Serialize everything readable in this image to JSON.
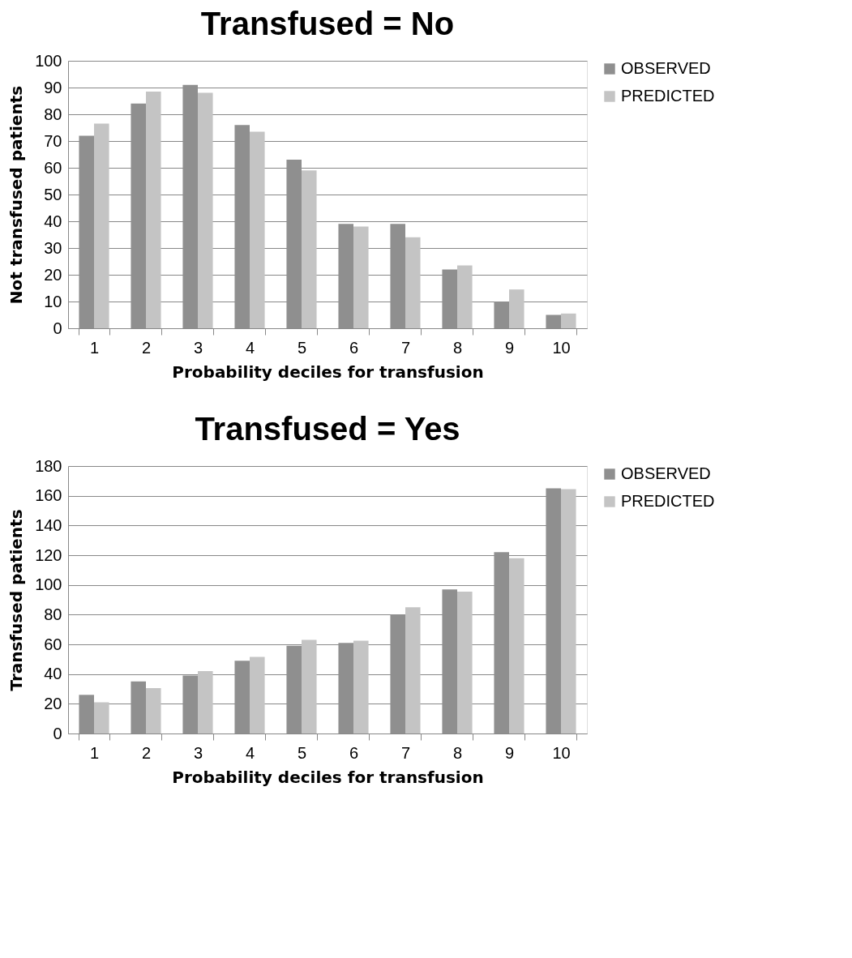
{
  "chart_data": [
    {
      "type": "bar",
      "title": "Transfused = No",
      "xlabel": "Probability deciles for transfusion",
      "ylabel": "Not transfused patients",
      "categories": [
        "1",
        "2",
        "3",
        "4",
        "5",
        "6",
        "7",
        "8",
        "9",
        "10"
      ],
      "series": [
        {
          "name": "OBSERVED",
          "color": "#8f8f8f",
          "values": [
            72,
            84,
            91,
            76,
            63,
            39,
            39,
            22,
            10,
            5
          ]
        },
        {
          "name": "PREDICTED",
          "color": "#c4c4c4",
          "values": [
            76.5,
            88.5,
            88,
            73.5,
            59,
            38,
            34,
            23.5,
            14.5,
            5.5
          ]
        }
      ],
      "ylim": [
        0,
        100
      ],
      "yticks": [
        0,
        10,
        20,
        30,
        40,
        50,
        60,
        70,
        80,
        90,
        100
      ],
      "grid": "y",
      "legend": "right"
    },
    {
      "type": "bar",
      "title": "Transfused = Yes",
      "xlabel": "Probability deciles for transfusion",
      "ylabel": "Transfused patients",
      "categories": [
        "1",
        "2",
        "3",
        "4",
        "5",
        "6",
        "7",
        "8",
        "9",
        "10"
      ],
      "series": [
        {
          "name": "OBSERVED",
          "color": "#8f8f8f",
          "values": [
            26,
            35,
            39,
            49,
            59,
            61,
            80,
            97,
            122,
            165
          ]
        },
        {
          "name": "PREDICTED",
          "color": "#c4c4c4",
          "values": [
            21,
            30.5,
            42,
            51.5,
            63,
            62.5,
            85,
            95.5,
            118,
            164.5
          ]
        }
      ],
      "ylim": [
        0,
        180
      ],
      "yticks": [
        0,
        20,
        40,
        60,
        80,
        100,
        120,
        140,
        160,
        180
      ],
      "grid": "y",
      "legend": "right"
    }
  ]
}
